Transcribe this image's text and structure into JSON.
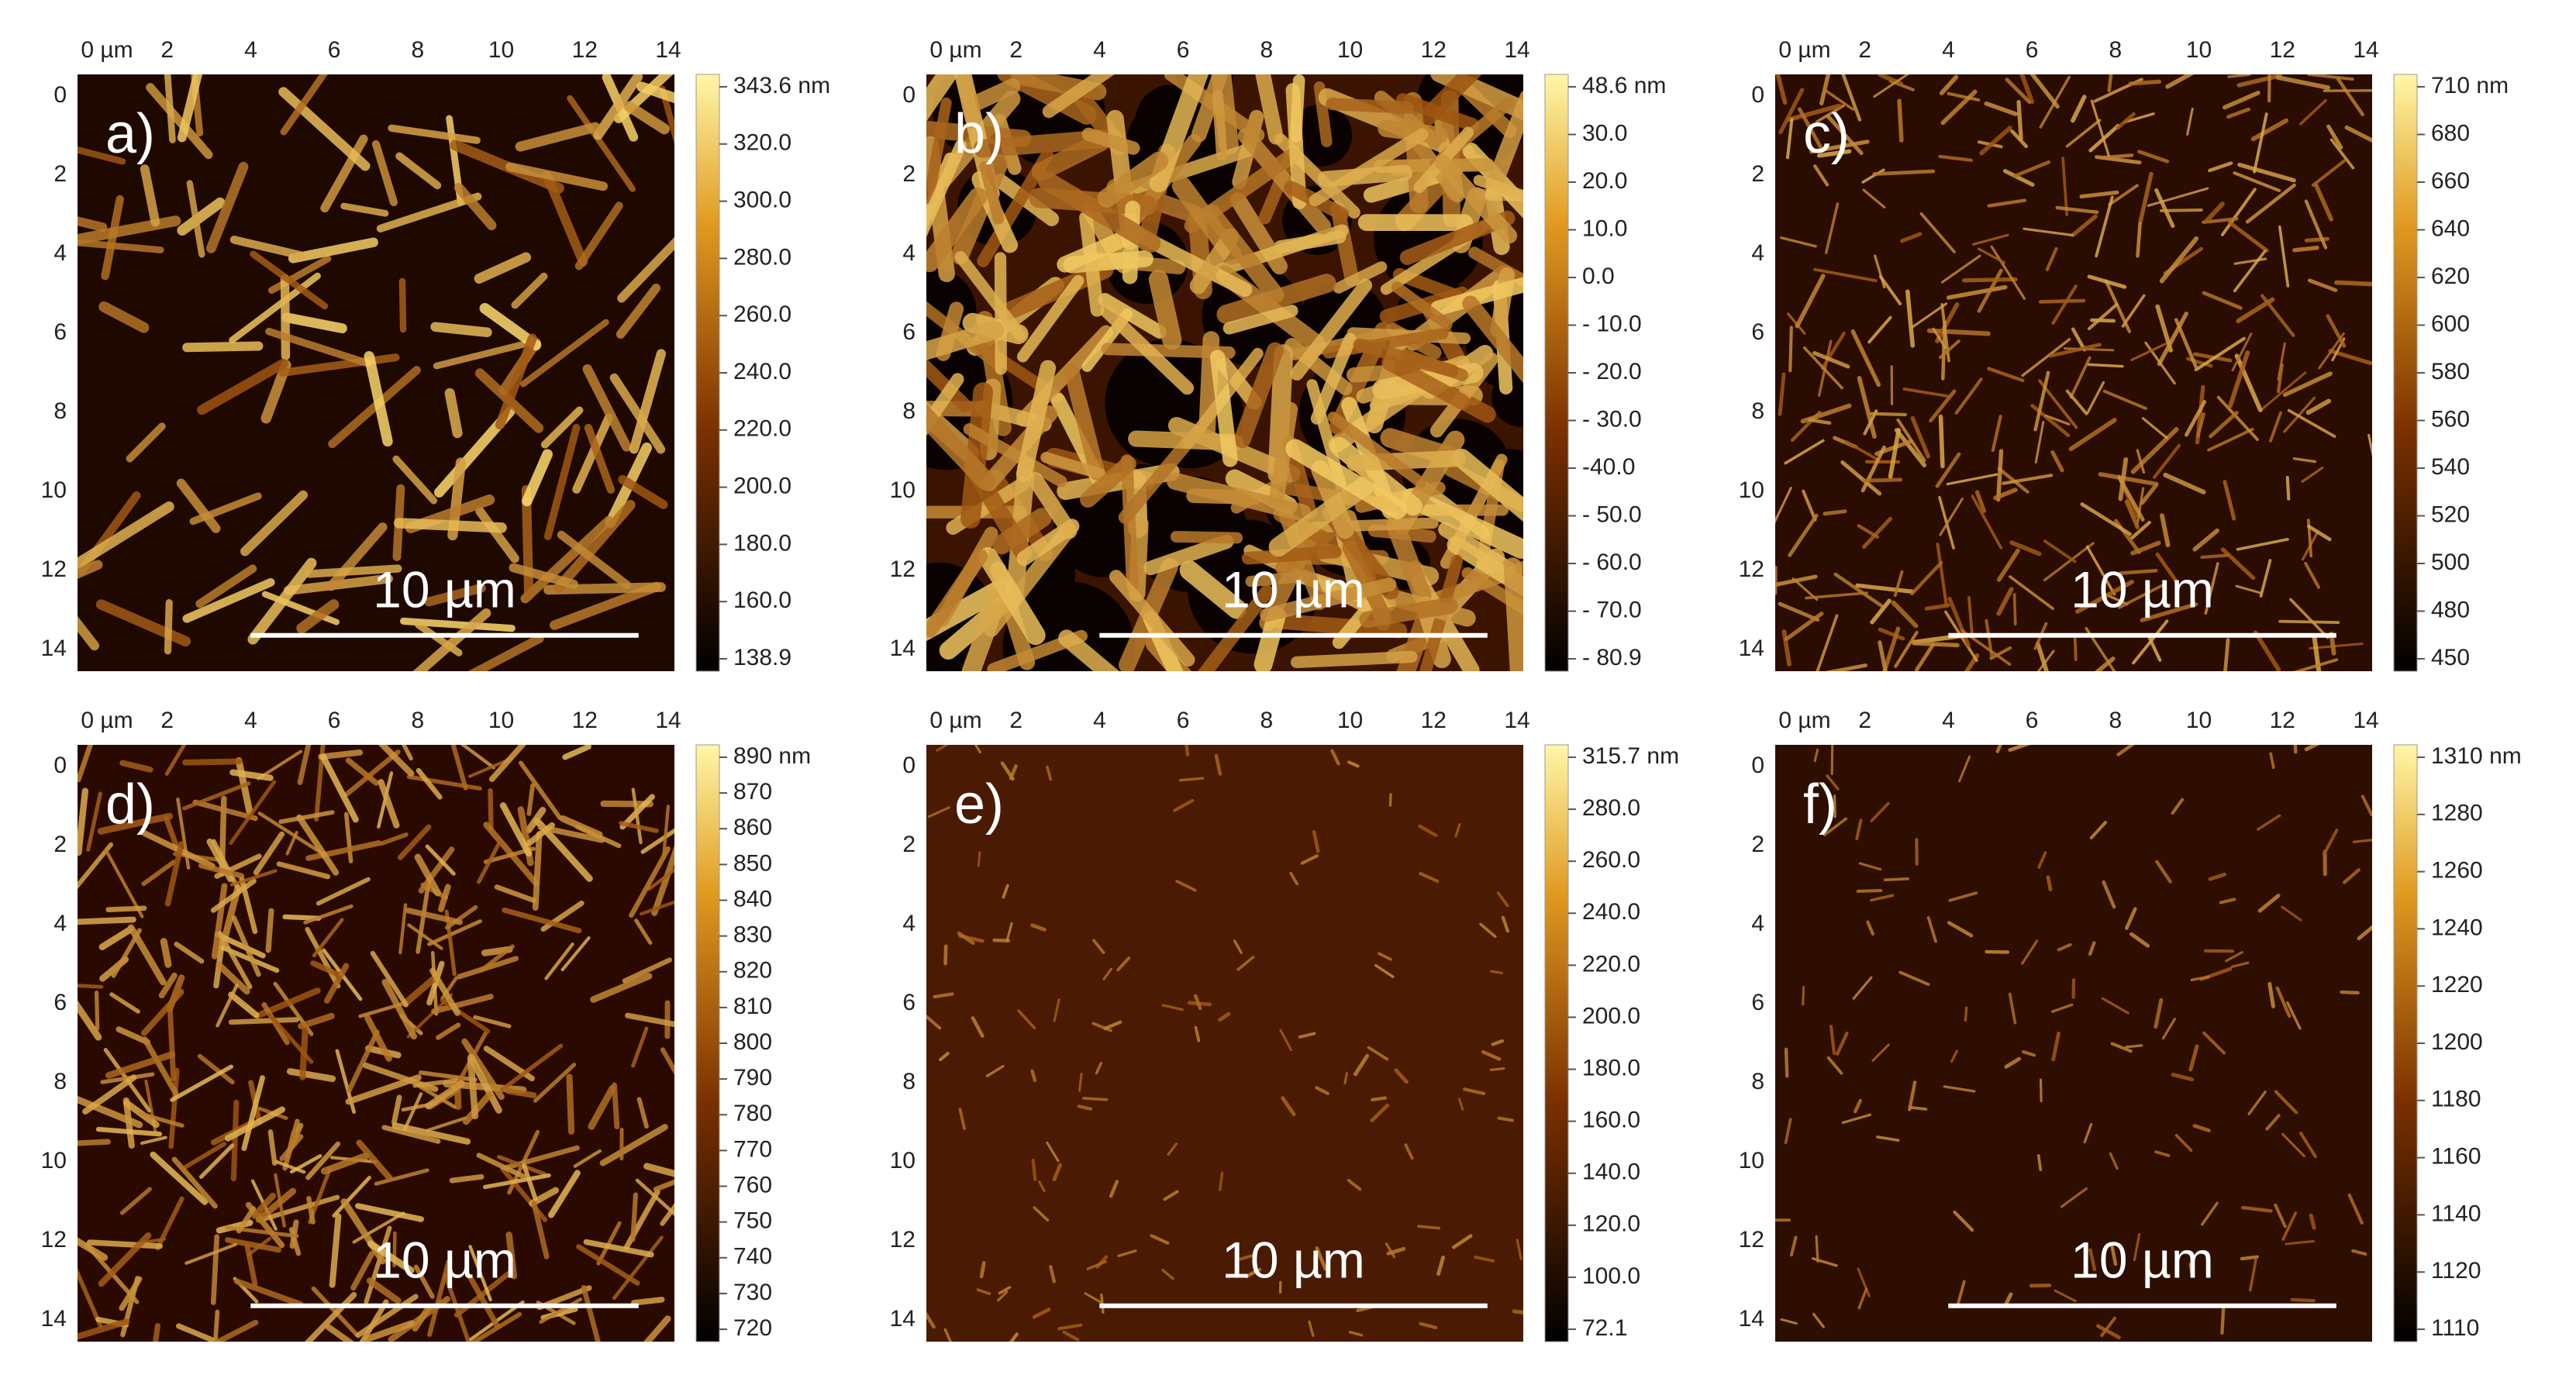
{
  "panels": [
    {
      "label": "a)",
      "scale_bar": "10 µm",
      "x_ticks": [
        "0 µm",
        "2",
        "4",
        "6",
        "8",
        "10",
        "12",
        "14"
      ],
      "y_ticks": [
        "0",
        "2",
        "4",
        "6",
        "8",
        "10",
        "12",
        "14"
      ],
      "colorbar_ticks": [
        "343.6 nm",
        "320.0",
        "300.0",
        "280.0",
        "260.0",
        "240.0",
        "220.0",
        "200.0",
        "180.0",
        "160.0",
        "138.9"
      ]
    },
    {
      "label": "b)",
      "scale_bar": "10 µm",
      "x_ticks": [
        "0 µm",
        "2",
        "4",
        "6",
        "8",
        "10",
        "12",
        "14"
      ],
      "y_ticks": [
        "0",
        "2",
        "4",
        "6",
        "8",
        "10",
        "12",
        "14"
      ],
      "colorbar_ticks": [
        "48.6 nm",
        "30.0",
        "20.0",
        "10.0",
        "0.0",
        "- 10.0",
        "- 20.0",
        "- 30.0",
        "-40.0",
        "- 50.0",
        "- 60.0",
        "- 70.0",
        "- 80.9"
      ]
    },
    {
      "label": "c)",
      "scale_bar": "10 µm",
      "x_ticks": [
        "0 µm",
        "2",
        "4",
        "6",
        "8",
        "10",
        "12",
        "14"
      ],
      "y_ticks": [
        "0",
        "2",
        "4",
        "6",
        "8",
        "10",
        "12",
        "14"
      ],
      "colorbar_ticks": [
        "710 nm",
        "680",
        "660",
        "640",
        "620",
        "600",
        "580",
        "560",
        "540",
        "520",
        "500",
        "480",
        "450"
      ]
    },
    {
      "label": "d)",
      "scale_bar": "10 µm",
      "x_ticks": [
        "0 µm",
        "2",
        "4",
        "6",
        "8",
        "10",
        "12",
        "14"
      ],
      "y_ticks": [
        "0",
        "2",
        "4",
        "6",
        "8",
        "10",
        "12",
        "14"
      ],
      "colorbar_ticks": [
        "890 nm",
        "870",
        "860",
        "850",
        "840",
        "830",
        "820",
        "810",
        "800",
        "790",
        "780",
        "770",
        "760",
        "750",
        "740",
        "730",
        "720"
      ]
    },
    {
      "label": "e)",
      "scale_bar": "10 µm",
      "x_ticks": [
        "0 µm",
        "2",
        "4",
        "6",
        "8",
        "10",
        "12",
        "14"
      ],
      "y_ticks": [
        "0",
        "2",
        "4",
        "6",
        "8",
        "10",
        "12",
        "14"
      ],
      "colorbar_ticks": [
        "315.7 nm",
        "280.0",
        "260.0",
        "240.0",
        "220.0",
        "200.0",
        "180.0",
        "160.0",
        "140.0",
        "120.0",
        "100.0",
        "72.1"
      ]
    },
    {
      "label": "f)",
      "scale_bar": "10 µm",
      "x_ticks": [
        "0 µm",
        "2",
        "4",
        "6",
        "8",
        "10",
        "12",
        "14"
      ],
      "y_ticks": [
        "0",
        "2",
        "4",
        "6",
        "8",
        "10",
        "12",
        "14"
      ],
      "colorbar_ticks": [
        "1310 nm",
        "1280",
        "1260",
        "1240",
        "1220",
        "1200",
        "1180",
        "1160",
        "1140",
        "1120",
        "1110"
      ]
    }
  ]
}
